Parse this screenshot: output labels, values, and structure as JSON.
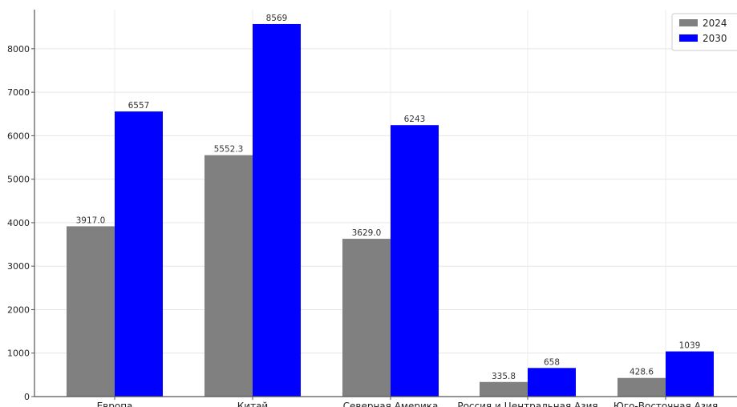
{
  "chart_data": {
    "type": "bar",
    "title": "",
    "xlabel": "",
    "ylabel": "",
    "categories": [
      "Европа",
      "Китай",
      "Северная Америка",
      "Россия и Центральная Азия",
      "Юго-Восточная Азия"
    ],
    "series": [
      {
        "name": "2024",
        "color": "#808080",
        "values": [
          3917.0,
          5552.3,
          3629.0,
          335.8,
          428.6
        ],
        "labels": [
          "3917.0",
          "5552.3",
          "3629.0",
          "335.8",
          "428.6"
        ]
      },
      {
        "name": "2030",
        "color": "#0000ff",
        "values": [
          6557,
          8569,
          6243,
          658,
          1039
        ],
        "labels": [
          "6557",
          "8569",
          "6243",
          "658",
          "1039"
        ]
      }
    ],
    "ylim": [
      0,
      8900
    ],
    "yticks": [
      0,
      1000,
      2000,
      3000,
      4000,
      5000,
      6000,
      7000,
      8000
    ],
    "grid": true,
    "legend_position": "top-right"
  }
}
